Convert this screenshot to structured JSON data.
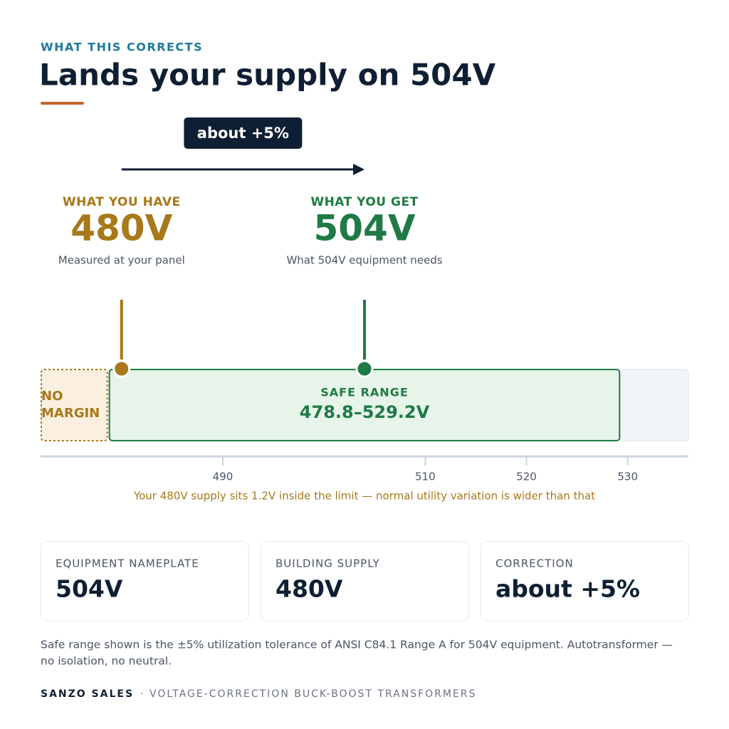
{
  "header": {
    "eyebrow": "WHAT THIS CORRECTS",
    "title": "Lands your supply on 504V"
  },
  "correction_badge": "about +5%",
  "have": {
    "label": "WHAT YOU HAVE",
    "value": 480,
    "value_label": "480V",
    "note": "Measured at your panel"
  },
  "get": {
    "label": "WHAT YOU GET",
    "value": 504,
    "value_label": "504V",
    "note": "What 504V equipment needs"
  },
  "scale": {
    "range": [
      472,
      536
    ],
    "ticks": [
      490,
      510,
      520,
      530
    ]
  },
  "safe_range": {
    "label": "SAFE RANGE",
    "min": 478.8,
    "max": 529.2,
    "range_label": "478.8–529.2V"
  },
  "no_margin": [
    "NO",
    "MARGIN"
  ],
  "warning": "Your 480V supply sits 1.2V inside the limit — normal utility variation is wider than that",
  "cards": [
    {
      "label": "EQUIPMENT NAMEPLATE",
      "value": "504V"
    },
    {
      "label": "BUILDING SUPPLY",
      "value": "480V"
    },
    {
      "label": "CORRECTION",
      "value": "about +5%"
    }
  ],
  "footnote": [
    "Safe range shown is the ±5% utilization tolerance of ANSI C84.1 Range A for 504V equipment. Autotransformer —",
    "no isolation, no neutral."
  ],
  "footer": {
    "brand": "SANZO SALES",
    "separator": "·",
    "tagline": "VOLTAGE-CORRECTION BUCK-BOOST TRANSFORMERS"
  }
}
